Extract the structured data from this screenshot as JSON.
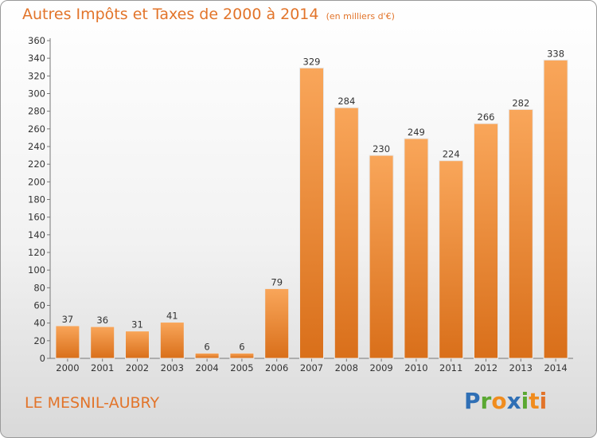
{
  "chart_data": {
    "type": "bar",
    "title": "Autres Impôts et Taxes de 2000 à 2014",
    "subtitle": "(en milliers d'€)",
    "categories": [
      "2000",
      "2001",
      "2002",
      "2003",
      "2004",
      "2005",
      "2006",
      "2007",
      "2008",
      "2009",
      "2010",
      "2011",
      "2012",
      "2013",
      "2014"
    ],
    "values": [
      37,
      36,
      31,
      41,
      6,
      6,
      79,
      329,
      284,
      230,
      249,
      224,
      266,
      282,
      338
    ],
    "ylim": [
      0,
      360
    ],
    "yticks": [
      0,
      20,
      40,
      60,
      80,
      100,
      120,
      140,
      160,
      180,
      200,
      220,
      240,
      260,
      280,
      300,
      320,
      340,
      360
    ],
    "grid": false,
    "legend": "none",
    "bar_color": "#f0923c"
  },
  "footer": {
    "commune": "LE MESNIL-AUBRY",
    "brand_letters": [
      {
        "ch": "P",
        "color": "#2f6fb5"
      },
      {
        "ch": "r",
        "color": "#5aa832"
      },
      {
        "ch": "o",
        "color": "#f08c1e"
      },
      {
        "ch": "x",
        "color": "#2f6fb5"
      },
      {
        "ch": "i",
        "color": "#5aa832"
      },
      {
        "ch": "t",
        "color": "#f08c1e"
      },
      {
        "ch": "i",
        "color": "#e2742a"
      }
    ]
  }
}
